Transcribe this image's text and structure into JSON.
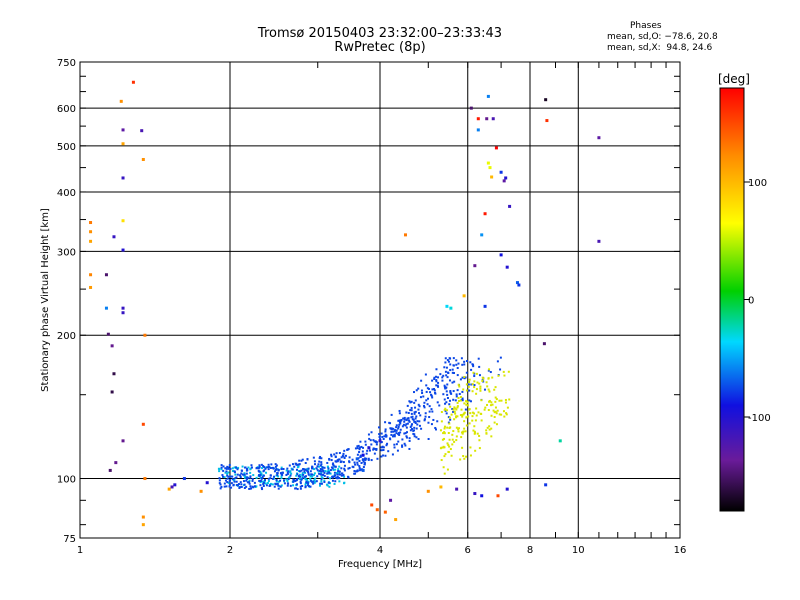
{
  "title": "Tromsø 20150403 23:32:00–23:33:43",
  "subtitle": "RwPretec (8p)",
  "phase_stats": {
    "heading": "Phases",
    "line_o": "mean, sd,O: −78.6, 20.8",
    "line_x": "mean, sd,X:  94.8, 24.6"
  },
  "chart_data": {
    "type": "scatter",
    "xlabel": "Frequency [MHz]",
    "ylabel": "Stationary phase Virtual Height [km]",
    "x_scale": "log",
    "y_scale": "log",
    "xlim": [
      1,
      16
    ],
    "ylim": [
      75,
      750
    ],
    "grid": true,
    "x_ticks": [
      1,
      2,
      4,
      6,
      8,
      10,
      16
    ],
    "y_ticks": [
      75,
      100,
      200,
      300,
      400,
      500,
      600,
      750
    ],
    "colorbar": {
      "label": "[deg]",
      "range": [
        -180,
        180
      ],
      "ticks": [
        -100,
        0,
        100
      ],
      "colormap": "rainbow"
    },
    "points": [
      [
        1.05,
        345,
        130
      ],
      [
        1.05,
        330,
        120
      ],
      [
        1.05,
        315,
        110
      ],
      [
        1.05,
        268,
        125
      ],
      [
        1.05,
        252,
        115
      ],
      [
        1.13,
        268,
        -150
      ],
      [
        1.13,
        228,
        -60
      ],
      [
        1.14,
        201,
        -150
      ],
      [
        1.17,
        322,
        -110
      ],
      [
        1.16,
        190,
        -140
      ],
      [
        1.17,
        166,
        -160
      ],
      [
        1.16,
        152,
        -160
      ],
      [
        1.15,
        104,
        -150
      ],
      [
        1.18,
        108,
        -140
      ],
      [
        1.22,
        540,
        -130
      ],
      [
        1.21,
        620,
        120
      ],
      [
        1.22,
        505,
        110
      ],
      [
        1.22,
        428,
        -110
      ],
      [
        1.22,
        348,
        80
      ],
      [
        1.22,
        302,
        -100
      ],
      [
        1.22,
        228,
        -110
      ],
      [
        1.22,
        223,
        -110
      ],
      [
        1.22,
        120,
        -140
      ],
      [
        1.28,
        680,
        160
      ],
      [
        1.33,
        538,
        -120
      ],
      [
        1.34,
        468,
        120
      ],
      [
        1.35,
        200,
        130
      ],
      [
        1.34,
        130,
        150
      ],
      [
        1.35,
        100,
        130
      ],
      [
        1.34,
        83,
        120
      ],
      [
        1.34,
        80,
        110
      ],
      [
        1.51,
        95,
        110
      ],
      [
        1.53,
        96,
        -120
      ],
      [
        1.55,
        97,
        -100
      ],
      [
        1.62,
        100,
        -80
      ],
      [
        1.75,
        94,
        120
      ],
      [
        1.8,
        98,
        -100
      ],
      [
        5.55,
        228,
        -30
      ],
      [
        5.45,
        230,
        -35
      ],
      [
        5.9,
        242,
        100
      ],
      [
        6.1,
        600,
        -150
      ],
      [
        6.3,
        570,
        170
      ],
      [
        6.3,
        540,
        -60
      ],
      [
        6.55,
        570,
        -140
      ],
      [
        6.4,
        325,
        -55
      ],
      [
        6.6,
        635,
        -60
      ],
      [
        6.75,
        570,
        -120
      ],
      [
        6.6,
        460,
        60
      ],
      [
        6.65,
        450,
        60
      ],
      [
        6.7,
        430,
        100
      ],
      [
        6.85,
        495,
        180
      ],
      [
        7.0,
        440,
        -80
      ],
      [
        7.1,
        422,
        -130
      ],
      [
        7.15,
        428,
        -100
      ],
      [
        7.28,
        373,
        -110
      ],
      [
        7.55,
        258,
        -70
      ],
      [
        7.6,
        255,
        -80
      ],
      [
        6.5,
        360,
        170
      ],
      [
        6.2,
        280,
        -140
      ],
      [
        6.5,
        230,
        -80
      ],
      [
        7.0,
        295,
        -90
      ],
      [
        7.2,
        278,
        -100
      ],
      [
        8.6,
        625,
        -170
      ],
      [
        8.65,
        565,
        160
      ],
      [
        8.55,
        192,
        -150
      ],
      [
        8.6,
        97,
        -80
      ],
      [
        9.2,
        120,
        -20
      ],
      [
        11.0,
        520,
        -130
      ],
      [
        11.0,
        315,
        -120
      ],
      [
        3.7,
        104,
        -70
      ],
      [
        3.85,
        88,
        150
      ],
      [
        3.95,
        86,
        140
      ],
      [
        4.1,
        85,
        140
      ],
      [
        4.2,
        90,
        -130
      ],
      [
        4.3,
        82,
        110
      ],
      [
        4.0,
        120,
        -110
      ],
      [
        3.8,
        116,
        -100
      ],
      [
        3.7,
        112,
        -90
      ],
      [
        3.6,
        110,
        -70
      ],
      [
        5.0,
        94,
        120
      ],
      [
        5.3,
        96,
        100
      ],
      [
        5.7,
        95,
        -120
      ],
      [
        6.2,
        93,
        -110
      ],
      [
        6.4,
        92,
        -90
      ],
      [
        6.9,
        92,
        150
      ],
      [
        7.2,
        95,
        -100
      ],
      [
        4.5,
        325,
        130
      ]
    ],
    "cluster_main_o": {
      "x": [
        1.9,
        7.0
      ],
      "y": [
        95,
        180
      ],
      "color": "#0a46e6"
    },
    "cluster_low_cyan": {
      "x": [
        1.9,
        3.4
      ],
      "y": [
        96,
        106
      ],
      "color": "#00bfe6"
    },
    "cluster_x_yellow": {
      "x": [
        5.3,
        7.3
      ],
      "y": [
        98,
        170
      ],
      "color": "#d9e600"
    }
  }
}
